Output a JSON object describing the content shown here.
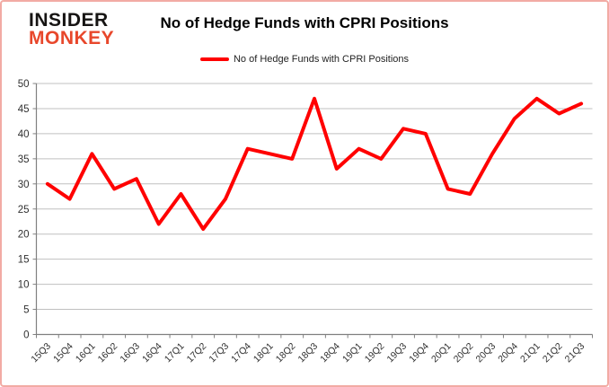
{
  "header": {
    "logo_line1": "INSIDER",
    "logo_line2": "MONKEY",
    "title": "No of Hedge Funds with CPRI Positions"
  },
  "legend": {
    "label": "No of Hedge Funds with CPRI Positions"
  },
  "colors": {
    "series_line": "#ff0000",
    "logo_black": "#161413",
    "logo_red": "#e8472b",
    "gridline": "#c0c0c0",
    "axis": "#808080",
    "tick_label": "#303030",
    "frame_border": "#f2aba4"
  },
  "chart_data": {
    "type": "line",
    "title": "No of Hedge Funds with CPRI Positions",
    "series": [
      {
        "name": "No of Hedge Funds with CPRI Positions",
        "values": [
          30,
          27,
          36,
          29,
          31,
          22,
          28,
          21,
          27,
          37,
          36,
          35,
          47,
          33,
          37,
          35,
          41,
          40,
          29,
          28,
          36,
          43,
          47,
          44,
          46
        ]
      }
    ],
    "categories": [
      "15Q3",
      "15Q4",
      "16Q1",
      "16Q2",
      "16Q3",
      "16Q4",
      "17Q1",
      "17Q2",
      "17Q3",
      "17Q4",
      "18Q1",
      "18Q2",
      "18Q3",
      "18Q4",
      "19Q1",
      "19Q2",
      "19Q3",
      "19Q4",
      "20Q1",
      "20Q2",
      "20Q3",
      "20Q4",
      "21Q1",
      "21Q2",
      "21Q3"
    ],
    "xlabel": "",
    "ylabel": "",
    "ylim": [
      0,
      50
    ],
    "ytick_step": 5,
    "grid": "horizontal",
    "legend_position": "top-center",
    "x_tick_label_rotation": -45
  }
}
